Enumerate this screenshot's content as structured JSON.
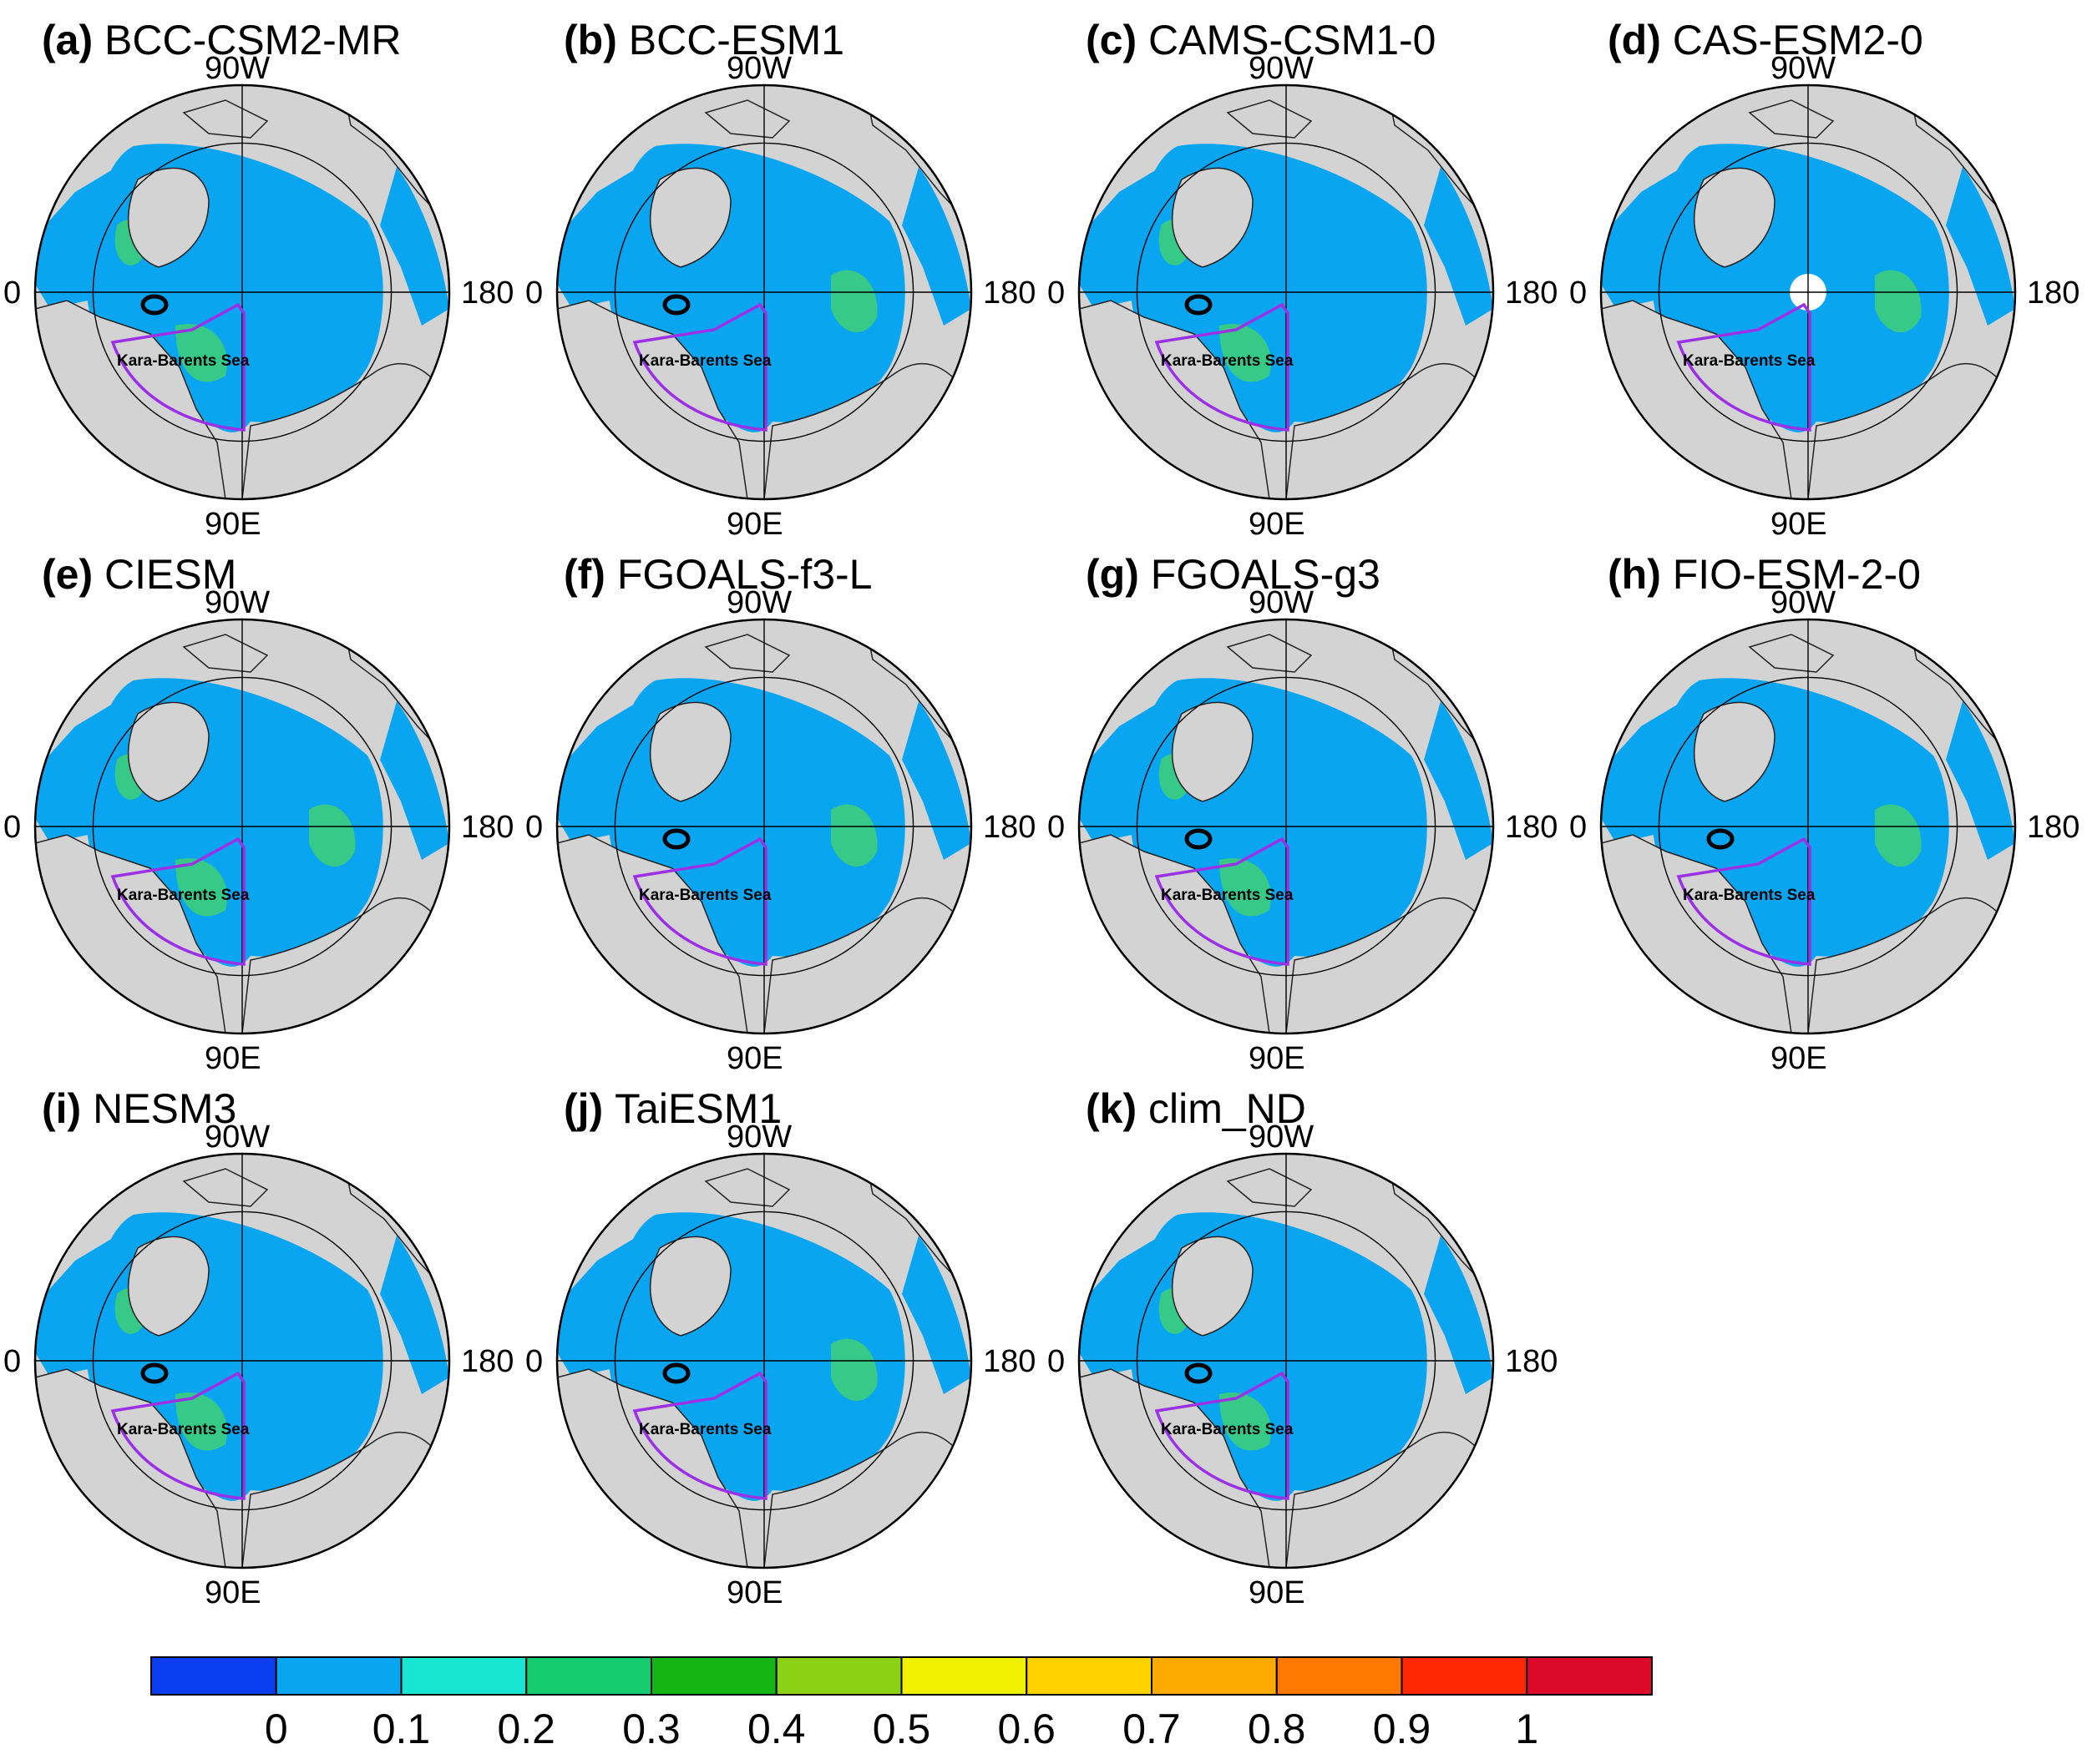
{
  "figure": {
    "lon_labels": {
      "top": "90W",
      "bottom": "90E",
      "left": "0",
      "right": "180"
    },
    "region_label": "Kara-Barents Sea",
    "panels": [
      {
        "label": "(a)",
        "model": "BCC-CSM2-MR"
      },
      {
        "label": "(b)",
        "model": "BCC-ESM1"
      },
      {
        "label": "(c)",
        "model": "CAMS-CSM1-0"
      },
      {
        "label": "(d)",
        "model": "CAS-ESM2-0"
      },
      {
        "label": "(e)",
        "model": "CIESM"
      },
      {
        "label": "(f)",
        "model": "FGOALS-f3-L"
      },
      {
        "label": "(g)",
        "model": "FGOALS-g3"
      },
      {
        "label": "(h)",
        "model": "FIO-ESM-2-0"
      },
      {
        "label": "(i)",
        "model": "NESM3"
      },
      {
        "label": "(j)",
        "model": "TaiESM1"
      },
      {
        "label": "(k)",
        "model": "clim_ND"
      }
    ]
  },
  "colors": {
    "land": "#d3d3d3",
    "ocean": "#0aa5f0",
    "ocean_moderate": "#3fcf74",
    "region_box": "#9b30e6",
    "missing": "#ffffff"
  },
  "colorbar": {
    "colors": [
      "#0a3cf0",
      "#0aa5f0",
      "#19e6d2",
      "#14cc6e",
      "#14b414",
      "#8cd214",
      "#f0f000",
      "#ffd200",
      "#ffaa00",
      "#ff7800",
      "#ff2800",
      "#dc0a28"
    ],
    "tick_labels": [
      "0",
      "0.1",
      "0.2",
      "0.3",
      "0.4",
      "0.5",
      "0.6",
      "0.7",
      "0.8",
      "0.9",
      "1"
    ]
  }
}
